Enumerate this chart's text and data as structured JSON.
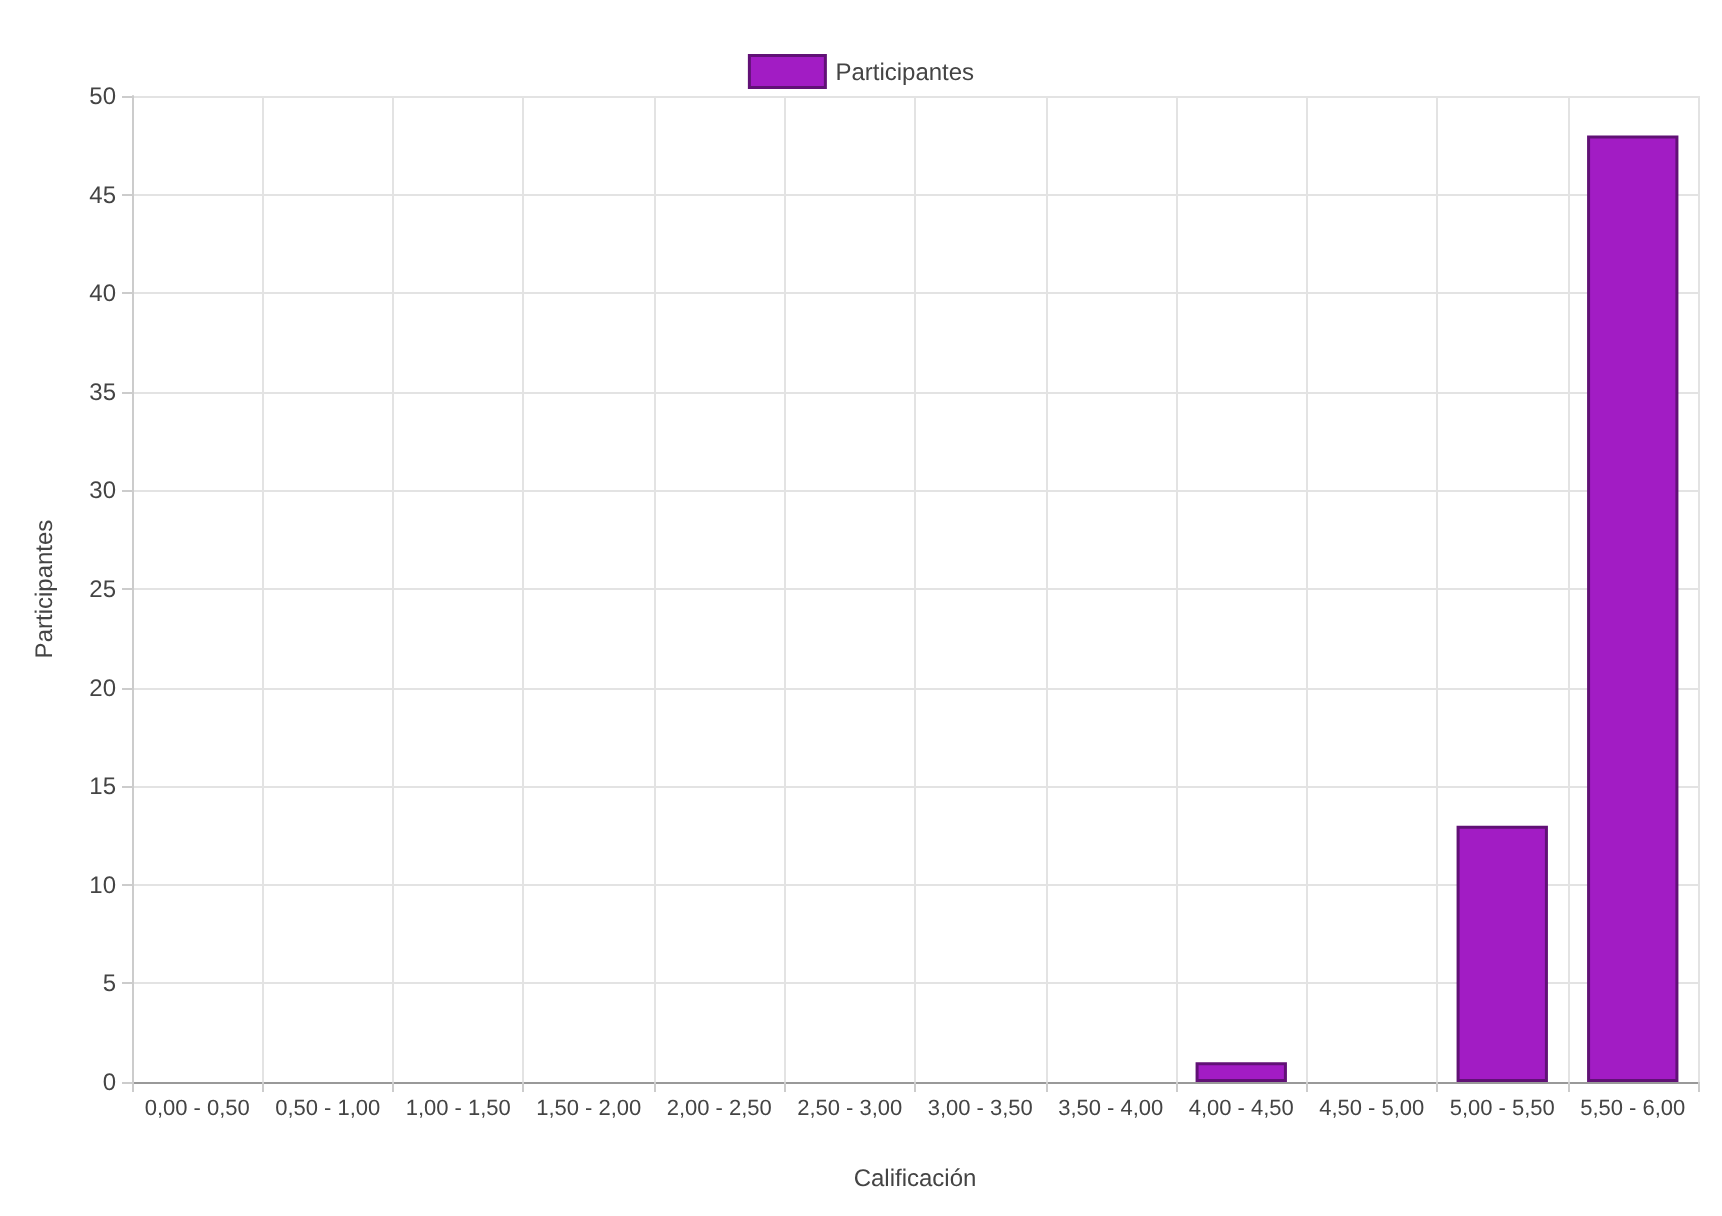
{
  "chart_data": {
    "type": "bar",
    "xlabel": "Calificación",
    "ylabel": "Participantes",
    "categories": [
      "0,00 - 0,50",
      "0,50 - 1,00",
      "1,00 - 1,50",
      "1,50 - 2,00",
      "2,00 - 2,50",
      "2,50 - 3,00",
      "3,00 - 3,50",
      "3,50 - 4,00",
      "4,00 - 4,50",
      "4,50 - 5,00",
      "5,00 - 5,50",
      "5,50 - 6,00"
    ],
    "series": [
      {
        "name": "Participantes",
        "color": "#a21cc4",
        "values": [
          0,
          0,
          0,
          0,
          0,
          0,
          0,
          0,
          1,
          0,
          13,
          48
        ]
      }
    ],
    "ylim": [
      0,
      50
    ],
    "yticks": [
      0,
      5,
      10,
      15,
      20,
      25,
      30,
      35,
      40,
      45,
      50
    ],
    "grid": true,
    "legend": "top"
  }
}
